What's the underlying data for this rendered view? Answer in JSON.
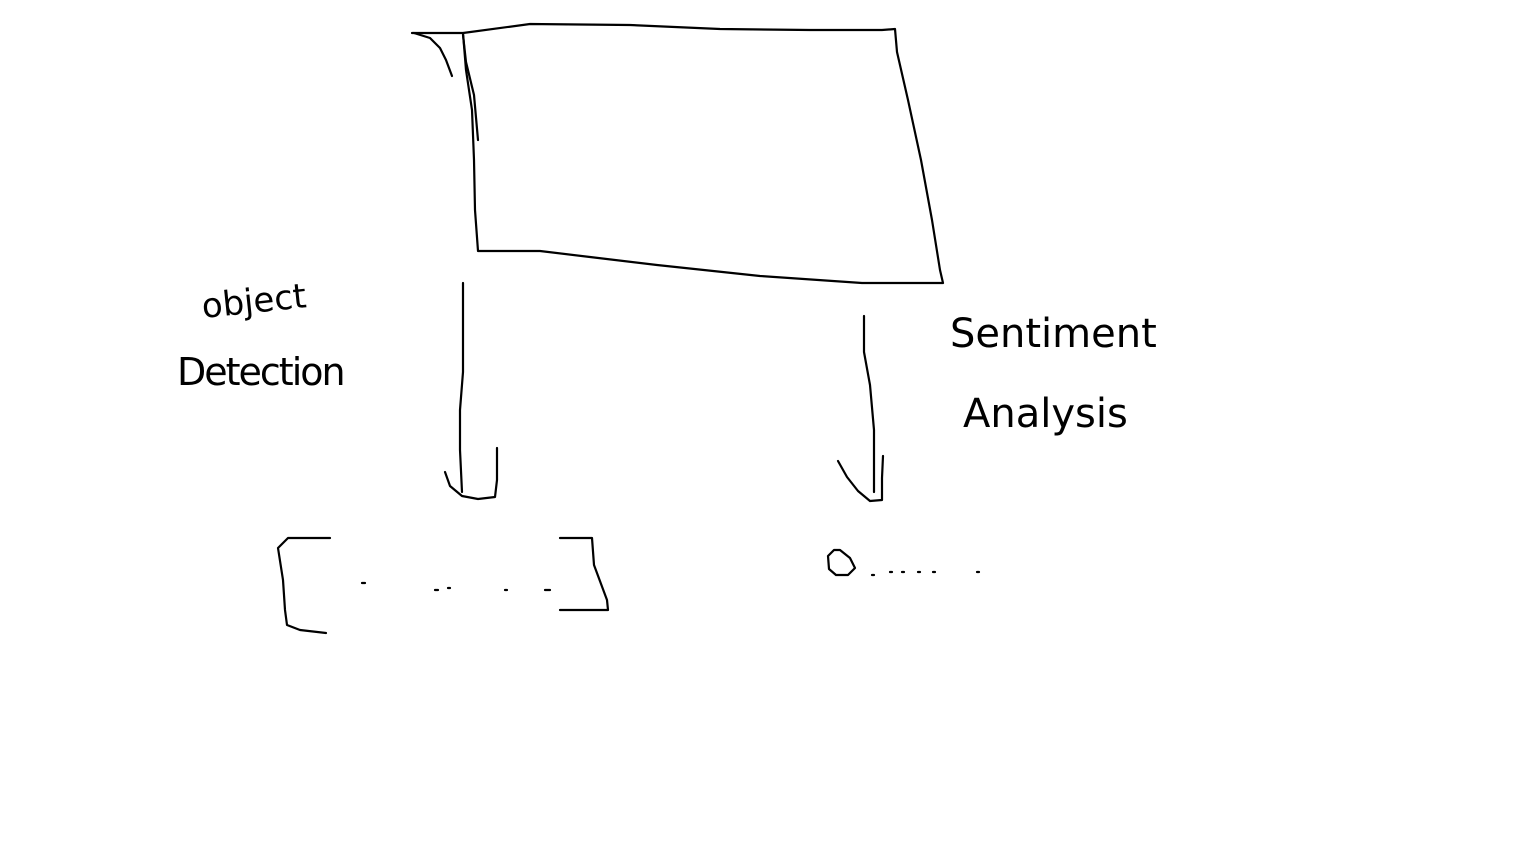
{
  "colors": {
    "background": "#ffffff",
    "ink": "#000000"
  },
  "labels": {
    "left_branch_line1": "object",
    "left_branch_line2": "Detection",
    "right_branch_line1": "Sentiment",
    "right_branch_line2": "Analysis"
  }
}
